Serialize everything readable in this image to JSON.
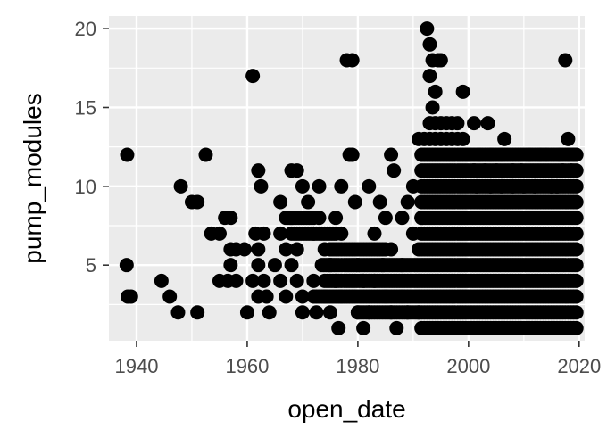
{
  "chart_data": {
    "type": "scatter",
    "title": "",
    "xlabel": "open_date",
    "ylabel": "pump_modules",
    "xlim": [
      1935,
      2021
    ],
    "ylim": [
      0.2,
      20.8
    ],
    "x_ticks": [
      1940,
      1960,
      1980,
      2000,
      2020
    ],
    "y_ticks": [
      5,
      10,
      15,
      20
    ],
    "x_tick_labels": [
      "1940",
      "1960",
      "1980",
      "2000",
      "2020"
    ],
    "y_tick_labels": [
      "5",
      "10",
      "15",
      "20"
    ],
    "grid": true,
    "point_color": "#000000",
    "panel_color": "#ebebeb",
    "points": [
      [
        1938.3,
        12
      ],
      [
        1938.2,
        5
      ],
      [
        1938.4,
        3
      ],
      [
        1939.0,
        3
      ],
      [
        1944.5,
        4
      ],
      [
        1946.0,
        3
      ],
      [
        1947.5,
        2
      ],
      [
        1948.0,
        10
      ],
      [
        1950.0,
        9
      ],
      [
        1951.0,
        9
      ],
      [
        1951.0,
        2
      ],
      [
        1952.5,
        12
      ],
      [
        1953.5,
        7
      ],
      [
        1955.0,
        7
      ],
      [
        1956.0,
        8
      ],
      [
        1957.0,
        8
      ],
      [
        1955.0,
        4
      ],
      [
        1956.5,
        4
      ],
      [
        1957.0,
        5
      ],
      [
        1958.0,
        4
      ],
      [
        1958.0,
        6
      ],
      [
        1959.5,
        6
      ],
      [
        1957.0,
        6
      ],
      [
        1961.0,
        17
      ],
      [
        1962.0,
        11
      ],
      [
        1962.5,
        10
      ],
      [
        1963.0,
        7
      ],
      [
        1961.5,
        7
      ],
      [
        1962.0,
        6
      ],
      [
        1962.0,
        5
      ],
      [
        1963.0,
        4
      ],
      [
        1962.0,
        3
      ],
      [
        1963.5,
        3
      ],
      [
        1960.0,
        2
      ],
      [
        1961.0,
        4
      ],
      [
        1964.0,
        2
      ],
      [
        1966.0,
        9
      ],
      [
        1968.0,
        11
      ],
      [
        1969.0,
        11
      ],
      [
        1970.0,
        10
      ],
      [
        1966.0,
        7
      ],
      [
        1967.0,
        6
      ],
      [
        1968.0,
        8
      ],
      [
        1965.0,
        5
      ],
      [
        1966.0,
        4
      ],
      [
        1967.0,
        3
      ],
      [
        1968.0,
        5
      ],
      [
        1969.0,
        6
      ],
      [
        1969.0,
        4
      ],
      [
        1970.0,
        3
      ],
      [
        1970.0,
        2
      ],
      [
        1971.0,
        9
      ],
      [
        1972.0,
        7
      ],
      [
        1972.0,
        4
      ],
      [
        1972.5,
        2
      ],
      [
        1973.0,
        10
      ],
      [
        1973.0,
        8
      ],
      [
        1974.0,
        6
      ],
      [
        1974.0,
        3
      ],
      [
        1975.0,
        5
      ],
      [
        1976.0,
        8
      ],
      [
        1976.0,
        4
      ],
      [
        1977.0,
        7
      ],
      [
        1977.0,
        10
      ],
      [
        1978.0,
        18
      ],
      [
        1979.0,
        18
      ],
      [
        1978.5,
        12
      ],
      [
        1979.0,
        12
      ],
      [
        1975.0,
        2
      ],
      [
        1976.5,
        1
      ],
      [
        1977.0,
        3
      ],
      [
        1979.5,
        9
      ],
      [
        1980.0,
        5
      ],
      [
        1980.0,
        2
      ],
      [
        1981.0,
        4
      ],
      [
        1981.0,
        1
      ],
      [
        1982.0,
        2
      ],
      [
        1982.0,
        10
      ],
      [
        1983.0,
        7
      ],
      [
        1983.0,
        4
      ],
      [
        1984.0,
        9
      ],
      [
        1984.5,
        5
      ],
      [
        1985.0,
        3
      ],
      [
        1985.0,
        8
      ],
      [
        1986.0,
        12
      ],
      [
        1986.5,
        11
      ],
      [
        1986.0,
        6
      ],
      [
        1986.0,
        2
      ],
      [
        1987.0,
        1
      ],
      [
        1988.0,
        8
      ],
      [
        1988.0,
        5
      ],
      [
        1988.0,
        3
      ],
      [
        1989.0,
        9
      ],
      [
        1989.0,
        2
      ],
      [
        1990.0,
        10
      ],
      [
        1990.0,
        7
      ],
      [
        1991.0,
        13
      ],
      [
        1991.0,
        6
      ],
      [
        1991.0,
        2
      ],
      [
        1991.5,
        8
      ],
      [
        1992.5,
        20
      ],
      [
        1993.0,
        19
      ],
      [
        1993.0,
        17
      ],
      [
        1993.5,
        18
      ],
      [
        1994.0,
        16
      ],
      [
        1994.5,
        18
      ],
      [
        1995.0,
        18
      ],
      [
        1993.5,
        15
      ],
      [
        1993.0,
        14
      ],
      [
        1994.0,
        14
      ],
      [
        1995.0,
        14
      ],
      [
        1996.0,
        14
      ],
      [
        1997.0,
        14
      ],
      [
        1998.0,
        14
      ],
      [
        1999.0,
        16
      ],
      [
        1992.0,
        13
      ],
      [
        1993.0,
        13
      ],
      [
        1994.0,
        13
      ],
      [
        1995.0,
        13
      ],
      [
        1996.0,
        13
      ],
      [
        1997.0,
        13
      ],
      [
        1998.0,
        13
      ],
      [
        1999.0,
        13
      ],
      [
        2001.0,
        14
      ],
      [
        2003.5,
        14
      ],
      [
        2006.5,
        13
      ],
      [
        2002.0,
        12
      ],
      [
        2004.0,
        12
      ],
      [
        2006.0,
        12
      ],
      [
        2008.0,
        11
      ],
      [
        2009.5,
        11
      ],
      [
        2011.0,
        12
      ],
      [
        2013.0,
        12
      ],
      [
        2017.5,
        18
      ],
      [
        2018.0,
        13
      ],
      [
        2018.0,
        12
      ],
      [
        2019.0,
        12
      ],
      [
        2017.0,
        11
      ],
      [
        2018.5,
        11
      ],
      [
        2008.0,
        10
      ],
      [
        2010.0,
        10
      ],
      [
        2015.0,
        10
      ],
      [
        2016.0,
        10
      ],
      [
        2000.0,
        12
      ],
      [
        2001.0,
        11
      ],
      [
        2005.0,
        11
      ],
      [
        2004.0,
        10
      ],
      [
        2003.0,
        11
      ],
      [
        2001.5,
        10
      ],
      [
        2006.0,
        10
      ],
      [
        2012.0,
        10
      ],
      [
        2014.0,
        12
      ],
      [
        2016.5,
        12
      ]
    ],
    "dense_block": {
      "x_range": [
        1991.5,
        2019.5
      ],
      "y_values": [
        1,
        2,
        3,
        4,
        5,
        6,
        7,
        8,
        9,
        10,
        11,
        12
      ]
    },
    "row_bands": [
      {
        "y": 5,
        "x_range": [
          1973.5,
          1991.0
        ]
      },
      {
        "y": 4,
        "x_range": [
          1974.0,
          1991.0
        ]
      },
      {
        "y": 3,
        "x_range": [
          1972.0,
          1991.0
        ]
      },
      {
        "y": 2,
        "x_range": [
          1980.0,
          1991.0
        ]
      },
      {
        "y": 6,
        "x_range": [
          1975.0,
          1985.0
        ]
      },
      {
        "y": 7,
        "x_range": [
          1968.0,
          1976.0
        ]
      },
      {
        "y": 8,
        "x_range": [
          1967.0,
          1972.0
        ]
      }
    ]
  }
}
